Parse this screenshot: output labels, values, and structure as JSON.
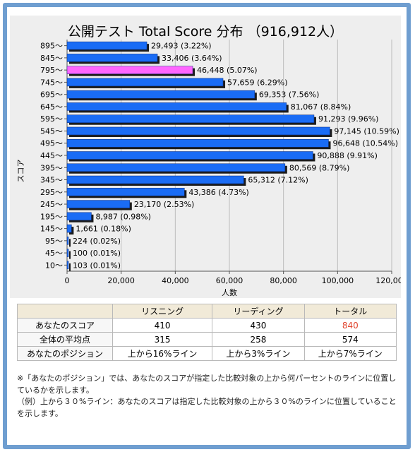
{
  "chart_data": {
    "type": "bar",
    "orientation": "horizontal",
    "title": "公開テスト Total Score 分布 （916,912人）",
    "xlabel": "人数",
    "ylabel": "スコア",
    "xlim": [
      0,
      120000
    ],
    "xticks": [
      "0",
      "20,000",
      "40,000",
      "60,000",
      "80,000",
      "100,000",
      "120,000"
    ],
    "grid": true,
    "highlight_color": "#ff66ff",
    "bar_color": "#1a6cf5",
    "categories": [
      "895～",
      "845～",
      "795～",
      "745～",
      "695～",
      "645～",
      "595～",
      "545～",
      "495～",
      "445～",
      "395～",
      "345～",
      "295～",
      "245～",
      "195～",
      "145～",
      "95～",
      "45～",
      "10～"
    ],
    "values": [
      29493,
      33406,
      46448,
      57659,
      69353,
      81067,
      91293,
      97145,
      96648,
      90888,
      80569,
      65312,
      43386,
      23170,
      8987,
      1661,
      224,
      100,
      103
    ],
    "labels": [
      "29,493 (3.22%)",
      "33,406 (3.64%)",
      "46,448 (5.07%)",
      "57,659 (6.29%)",
      "69,353 (7.56%)",
      "81,067 (8.84%)",
      "91,293 (9.96%)",
      "97,145 (10.59%)",
      "96,648 (10.54%)",
      "90,888 (9.91%)",
      "80,569 (8.79%)",
      "65,312 (7.12%)",
      "43,386 (4.73%)",
      "23,170 (2.53%)",
      "8,987 (0.98%)",
      "1,661 (0.18%)",
      "224 (0.02%)",
      "100 (0.01%)",
      "103 (0.01%)"
    ],
    "highlight_category": "795～"
  },
  "table": {
    "columns": [
      "",
      "リスニング",
      "リーディング",
      "トータル"
    ],
    "rows": [
      {
        "label": "あなたのスコア",
        "listening": "410",
        "reading": "430",
        "total": "840"
      },
      {
        "label": "全体の平均点",
        "listening": "315",
        "reading": "258",
        "total": "574"
      },
      {
        "label": "あなたのポジション",
        "listening": "上から16%ライン",
        "reading": "上から3%ライン",
        "total": "上から7%ライン"
      }
    ]
  },
  "notes": [
    "※「あなたのポジション」では、あなたのスコアが指定した比較対象の上から何パーセントのラインに位置しているかを示します。",
    "（例）上から３０%ライン：あなたのスコアは指定した比較対象の上から３０%のラインに位置していることを示します。"
  ]
}
